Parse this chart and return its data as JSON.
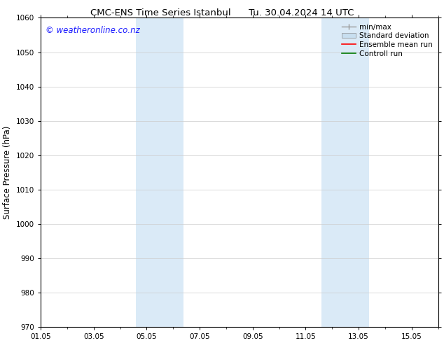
{
  "title_left": "CMC-ENS Time Series Istanbul",
  "title_right": "Tu. 30.04.2024 14 UTC",
  "ylabel": "Surface Pressure (hPa)",
  "ylim": [
    970,
    1060
  ],
  "yticks": [
    970,
    980,
    990,
    1000,
    1010,
    1020,
    1030,
    1040,
    1050,
    1060
  ],
  "xtick_labels": [
    "01.05",
    "03.05",
    "05.05",
    "07.05",
    "09.05",
    "11.05",
    "13.05",
    "15.05"
  ],
  "xtick_positions": [
    0,
    2,
    4,
    6,
    8,
    10,
    12,
    14
  ],
  "xlim": [
    0,
    15
  ],
  "shaded_bands": [
    {
      "x_start": 3.6,
      "x_end": 5.4
    },
    {
      "x_start": 10.6,
      "x_end": 12.4
    }
  ],
  "shade_color": "#daeaf7",
  "bg_color": "#ffffff",
  "watermark_text": "© weatheronline.co.nz",
  "watermark_color": "#1a1aff",
  "watermark_fontsize": 8.5,
  "legend_entries": [
    {
      "label": "min/max",
      "type": "line",
      "color": "#999999",
      "lw": 1.0
    },
    {
      "label": "Standard deviation",
      "type": "patch",
      "color": "#c8dff0"
    },
    {
      "label": "Ensemble mean run",
      "type": "line",
      "color": "#ff0000",
      "lw": 1.2
    },
    {
      "label": "Controll run",
      "type": "line",
      "color": "#007700",
      "lw": 1.2
    }
  ],
  "grid_color": "#cccccc",
  "grid_lw": 0.5,
  "tick_label_fontsize": 7.5,
  "axis_label_fontsize": 8.5,
  "title_fontsize": 9.5
}
